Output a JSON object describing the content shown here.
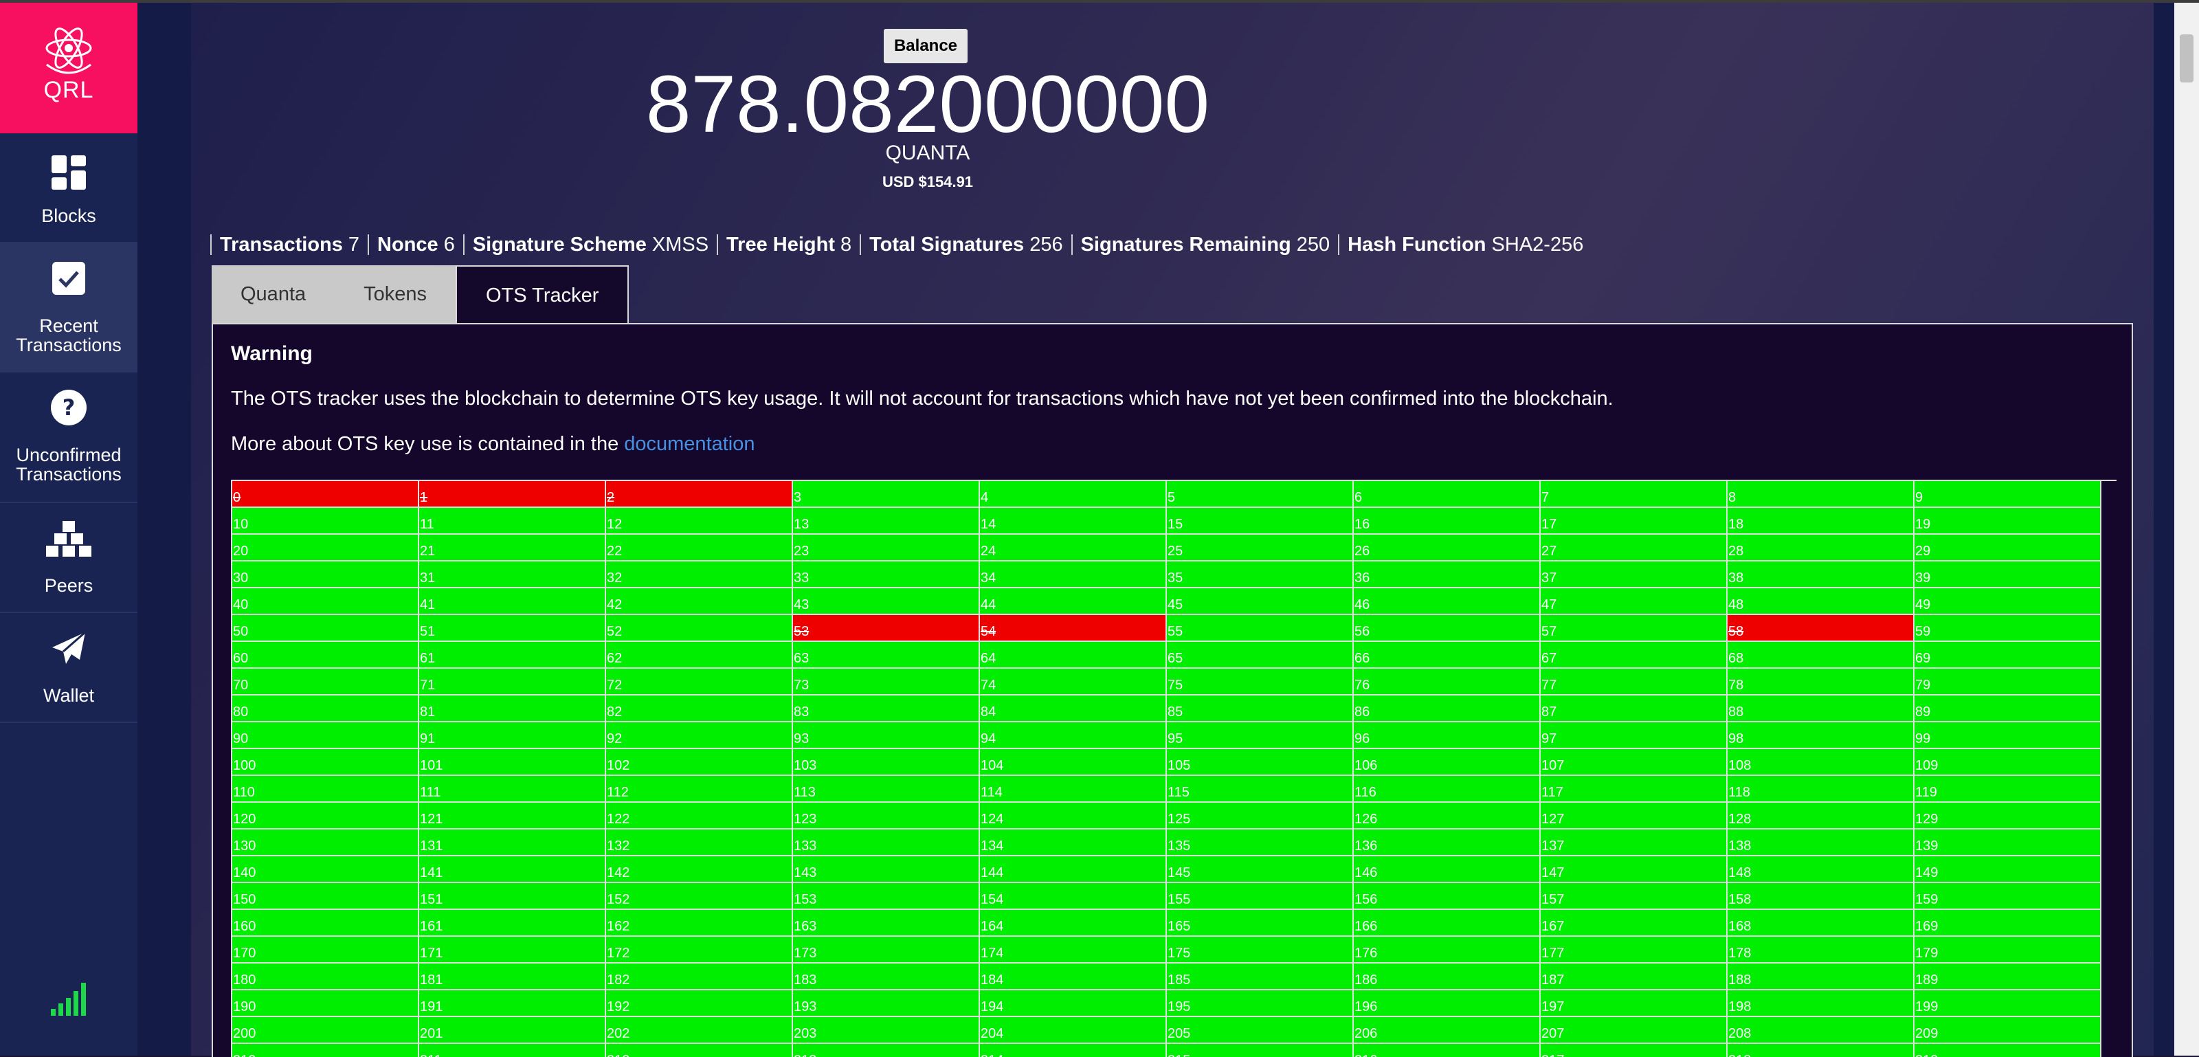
{
  "app": {
    "logo_text": "QRL",
    "nav": [
      {
        "label_lines": [
          "Blocks"
        ],
        "icon": "blocks-grid-icon",
        "active": false
      },
      {
        "label_lines": [
          "Recent",
          "Transactions"
        ],
        "icon": "checkbox-icon",
        "active": true
      },
      {
        "label_lines": [
          "Unconfirmed",
          "Transactions"
        ],
        "icon": "question-circle-icon",
        "active": false
      },
      {
        "label_lines": [
          "Peers"
        ],
        "icon": "peers-boxes-icon",
        "active": false
      },
      {
        "label_lines": [
          "Wallet"
        ],
        "icon": "paper-plane-icon",
        "active": false
      }
    ],
    "connection_icon": "signal-bars-icon"
  },
  "balance": {
    "tag": "Balance",
    "amount": "878.082000000",
    "unit": "QUANTA",
    "usd": "USD $154.91"
  },
  "stats": [
    {
      "label": "Transactions",
      "value": "7"
    },
    {
      "label": "Nonce",
      "value": "6"
    },
    {
      "label": "Signature Scheme",
      "value": "XMSS"
    },
    {
      "label": "Tree Height",
      "value": "8"
    },
    {
      "label": "Total Signatures",
      "value": "256"
    },
    {
      "label": "Signatures Remaining",
      "value": "250"
    },
    {
      "label": "Hash Function",
      "value": "SHA2-256"
    }
  ],
  "tabs": [
    {
      "label": "Quanta",
      "active": false
    },
    {
      "label": "Tokens",
      "active": false
    },
    {
      "label": "OTS Tracker",
      "active": true
    }
  ],
  "ots": {
    "warning_title": "Warning",
    "warning_text": "The OTS tracker uses the blockchain to determine OTS key usage. It will not account for transactions which have not yet been confirmed into the blockchain.",
    "more_prefix": "More about OTS key use is contained in the ",
    "more_link": "documentation",
    "columns": 10,
    "visible_rows": 22,
    "used_keys": [
      0,
      1,
      2,
      53,
      54,
      58
    ],
    "colors": {
      "used": "#ee0000",
      "free": "#00ee00"
    }
  }
}
